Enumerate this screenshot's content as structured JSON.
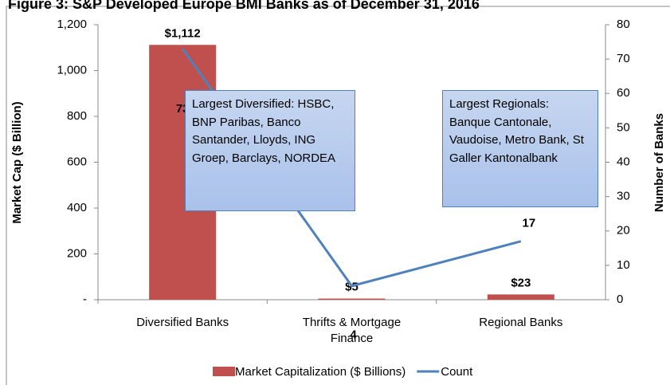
{
  "chart_data": {
    "type": "bar-line",
    "title": "Figure 3: S&P Developed Europe BMI Banks as of December 31, 2016",
    "y_label": "Market Cap ($ Billion)",
    "y2_label": "Number of Banks",
    "categories": [
      "Diversified Banks",
      "Thrifts & Mortgage Finance",
      "Regional Banks"
    ],
    "series": [
      {
        "name": "Market Capitalization ($ Billions)",
        "type": "bar",
        "color": "#c0504d",
        "values": [
          1112,
          5,
          23
        ],
        "value_labels": [
          "$1,112",
          "$5",
          "$23"
        ]
      },
      {
        "name": "Count",
        "type": "line",
        "axis": "y2",
        "color": "#4f81bd",
        "values": [
          73,
          4,
          17
        ],
        "value_labels": [
          "73",
          "4",
          "17"
        ]
      }
    ],
    "ylim": [
      0,
      1200
    ],
    "yticks": [
      {
        "value": 0,
        "label": "-"
      },
      200,
      400,
      600,
      800,
      {
        "value": 1000,
        "label": "1,000"
      },
      {
        "value": 1200,
        "label": "1,200"
      }
    ],
    "y2lim": [
      0,
      80
    ],
    "y2ticks": [
      0,
      10,
      20,
      30,
      40,
      50,
      60,
      70,
      80
    ],
    "annotations": [
      "Largest Diversified: HSBC, BNP Paribas, Banco Santander, Lloyds, ING Groep, Barclays, NORDEA",
      "Largest Regionals: Banque Cantonale, Vaudoise, Metro Bank, St Galler Kantonalbank"
    ]
  }
}
